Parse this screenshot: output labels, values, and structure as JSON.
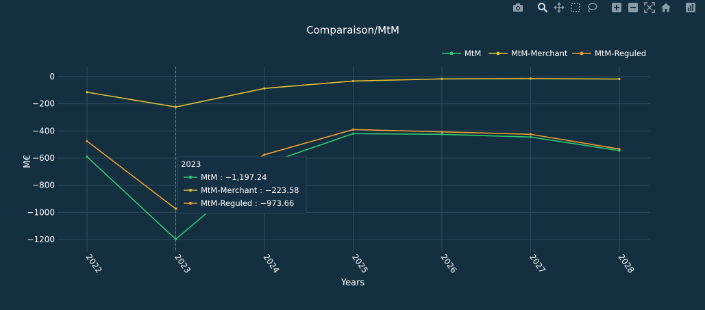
{
  "chart_data": {
    "type": "line",
    "title": "Comparaison/MtM",
    "xlabel": "Years",
    "ylabel": "M€",
    "x": [
      "2022",
      "2023",
      "2024",
      "2025",
      "2026",
      "2027",
      "2028"
    ],
    "y_ticks": [
      0,
      -200,
      -400,
      -600,
      -800,
      -1000,
      -1200
    ],
    "y_tick_labels": [
      "0",
      "−200",
      "−400",
      "−600",
      "−800",
      "−1000",
      "−1200"
    ],
    "ylim": [
      -1290,
      70
    ],
    "grid": true,
    "legend_position": "top-right",
    "series": [
      {
        "name": "MtM",
        "color": "#2ecc71",
        "values": [
          -590,
          -1197.24,
          -645,
          -420,
          -425,
          -445,
          -545
        ]
      },
      {
        "name": "MtM-Merchant",
        "color": "#e3c234",
        "values": [
          -115,
          -223.58,
          -87,
          -33,
          -17,
          -15,
          -18
        ]
      },
      {
        "name": "MtM-Reguled",
        "color": "#f0a030",
        "values": [
          -475,
          -973.66,
          -575,
          -390,
          -407,
          -425,
          -533
        ]
      }
    ],
    "hover": {
      "x": "2023",
      "title": "2023",
      "entries": [
        {
          "label": "MtM : −1,197.24",
          "color": "#2ecc71"
        },
        {
          "label": "MtM-Merchant : −223.58",
          "color": "#e3c234"
        },
        {
          "label": "MtM-Reguled : −973.66",
          "color": "#f0a030"
        }
      ]
    }
  },
  "toolbar": {
    "icons": [
      "camera-icon",
      "zoom-icon",
      "pan-icon",
      "box-select-icon",
      "lasso-select-icon",
      "zoom-in-icon",
      "zoom-out-icon",
      "autoscale-icon",
      "reset-axes-icon",
      "plotly-logo-icon"
    ]
  }
}
